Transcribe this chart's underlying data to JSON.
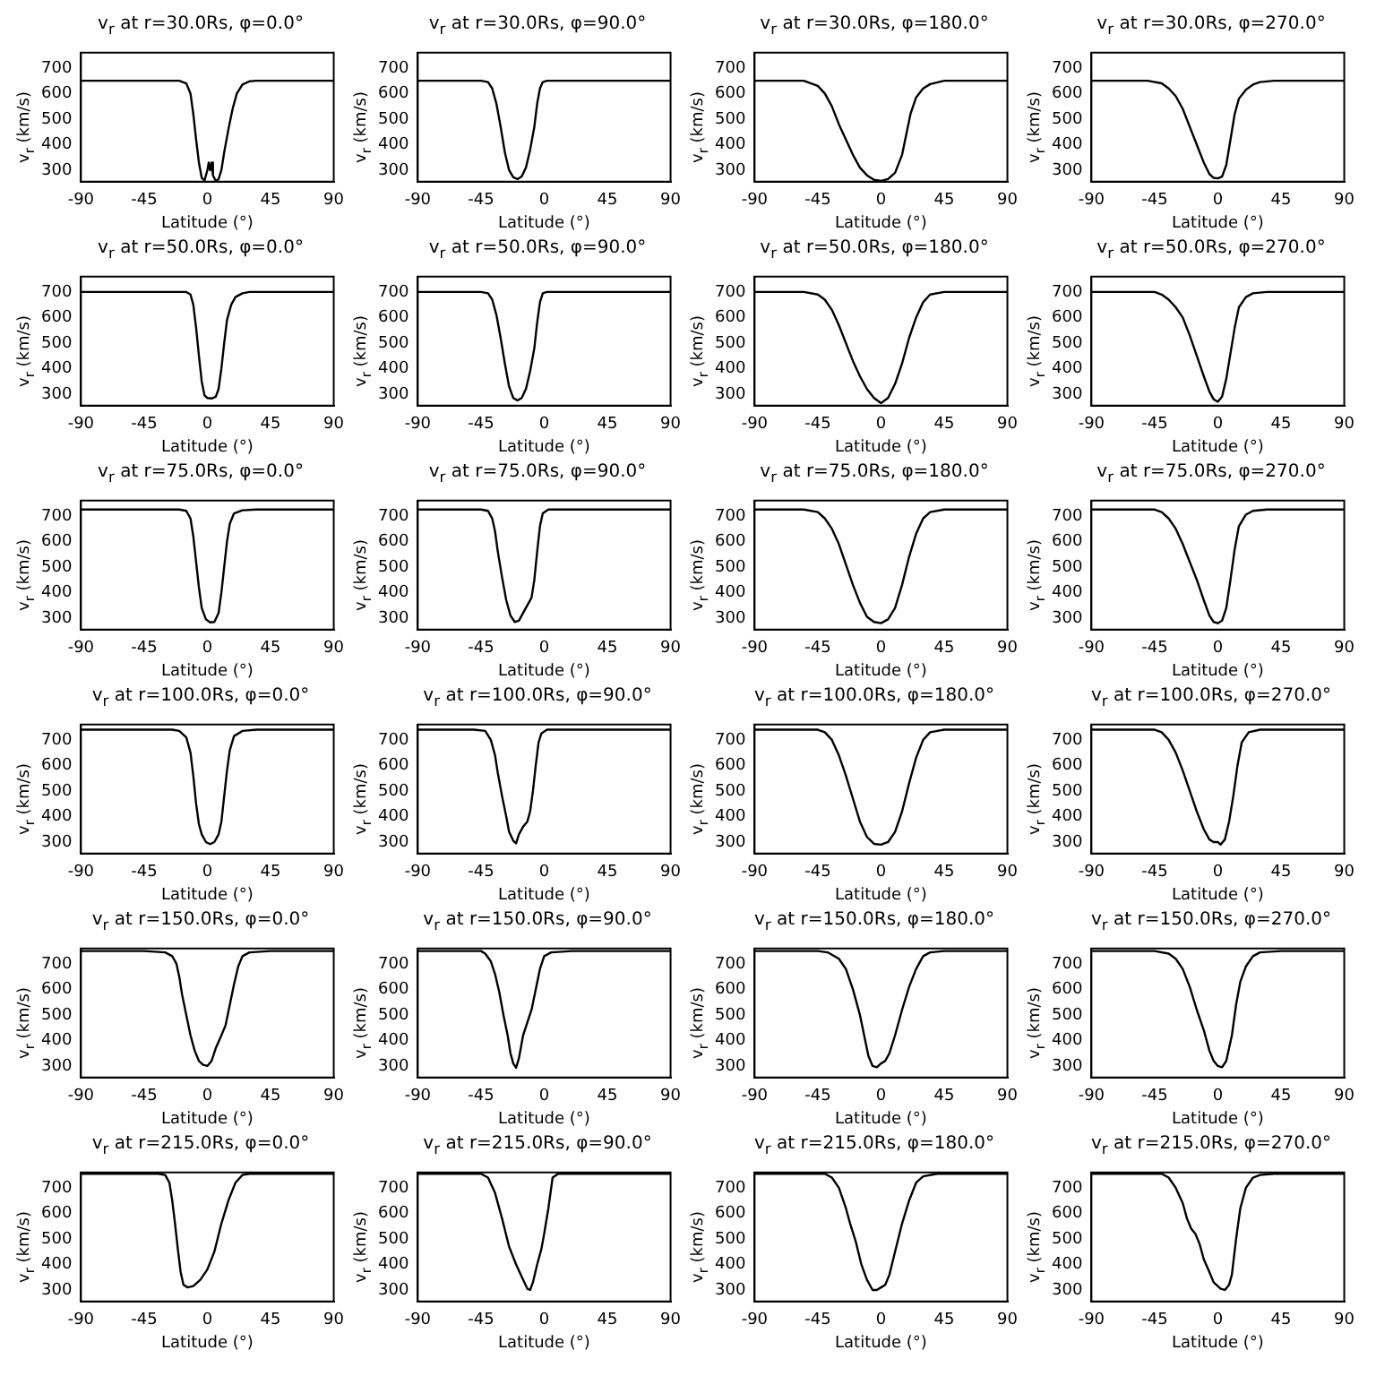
{
  "chart_data": [
    {
      "type": "line",
      "title": "v$_{r}$ at r=30.0Rs, φ=0.0°",
      "xlabel": "Latitude (°)",
      "ylabel": "v$_{r}$ (km/s)",
      "color": "#000000",
      "xlim": [
        -90,
        90
      ],
      "xticks": [
        -90,
        -45,
        0,
        45,
        90
      ],
      "ylim": [
        255,
        760
      ],
      "yticks": [
        300,
        400,
        500,
        600,
        700
      ],
      "x": [
        -90,
        -20,
        -15,
        -12,
        -10,
        -8,
        -6,
        -4,
        -2,
        0,
        1,
        2,
        3,
        4,
        6,
        8,
        10,
        12,
        15,
        18,
        21,
        25,
        30,
        35,
        90
      ],
      "values": [
        650,
        650,
        640,
        600,
        520,
        420,
        330,
        270,
        260,
        300,
        330,
        300,
        330,
        280,
        258,
        265,
        300,
        370,
        460,
        540,
        600,
        635,
        648,
        650,
        650
      ]
    },
    {
      "type": "line",
      "title": "v$_{r}$ at r=30.0Rs, φ=90.0°",
      "xlabel": "Latitude (°)",
      "ylabel": "v$_{r}$ (km/s)",
      "color": "#000000",
      "xlim": [
        -90,
        90
      ],
      "xticks": [
        -90,
        -45,
        0,
        45,
        90
      ],
      "ylim": [
        255,
        760
      ],
      "yticks": [
        300,
        400,
        500,
        600,
        700
      ],
      "x": [
        -90,
        -45,
        -40,
        -37,
        -34,
        -31,
        -28,
        -25,
        -22,
        -19,
        -16,
        -13,
        -10,
        -7,
        -5,
        -3,
        -1,
        2,
        90
      ],
      "values": [
        650,
        650,
        645,
        620,
        560,
        470,
        370,
        300,
        272,
        265,
        275,
        310,
        380,
        470,
        560,
        620,
        645,
        650,
        650
      ]
    },
    {
      "type": "line",
      "title": "v$_{r}$ at r=30.0Rs, φ=180.0°",
      "xlabel": "Latitude (°)",
      "ylabel": "v$_{r}$ (km/s)",
      "color": "#000000",
      "xlim": [
        -90,
        90
      ],
      "xticks": [
        -90,
        -45,
        0,
        45,
        90
      ],
      "ylim": [
        255,
        760
      ],
      "yticks": [
        300,
        400,
        500,
        600,
        700
      ],
      "x": [
        -90,
        -55,
        -45,
        -40,
        -35,
        -30,
        -25,
        -20,
        -15,
        -10,
        -5,
        0,
        5,
        10,
        15,
        18,
        21,
        25,
        30,
        35,
        45,
        90
      ],
      "values": [
        650,
        650,
        630,
        600,
        550,
        480,
        420,
        360,
        310,
        280,
        262,
        258,
        265,
        290,
        360,
        440,
        520,
        585,
        620,
        637,
        650,
        650
      ]
    },
    {
      "type": "line",
      "title": "v$_{r}$ at r=30.0Rs, φ=270.0°",
      "xlabel": "Latitude (°)",
      "ylabel": "v$_{r}$ (km/s)",
      "color": "#000000",
      "xlim": [
        -90,
        90
      ],
      "xticks": [
        -90,
        -45,
        0,
        45,
        90
      ],
      "ylim": [
        255,
        760
      ],
      "yticks": [
        300,
        400,
        500,
        600,
        700
      ],
      "x": [
        -90,
        -50,
        -40,
        -35,
        -30,
        -25,
        -20,
        -15,
        -10,
        -6,
        -3,
        0,
        3,
        6,
        9,
        12,
        15,
        20,
        25,
        30,
        40,
        90
      ],
      "values": [
        650,
        650,
        640,
        620,
        590,
        540,
        470,
        400,
        330,
        285,
        270,
        268,
        275,
        320,
        420,
        520,
        580,
        615,
        635,
        645,
        650,
        650
      ]
    },
    {
      "type": "line",
      "title": "v$_{r}$ at r=50.0Rs, φ=0.0°",
      "xlabel": "Latitude (°)",
      "ylabel": "v$_{r}$ (km/s)",
      "color": "#000000",
      "xlim": [
        -90,
        90
      ],
      "xticks": [
        -90,
        -45,
        0,
        45,
        90
      ],
      "ylim": [
        255,
        760
      ],
      "yticks": [
        300,
        400,
        500,
        600,
        700
      ],
      "x": [
        -90,
        -15,
        -12,
        -10,
        -8,
        -6,
        -4,
        -2,
        0,
        3,
        6,
        8,
        10,
        12,
        14,
        17,
        20,
        25,
        30,
        90
      ],
      "values": [
        700,
        700,
        690,
        650,
        560,
        450,
        350,
        295,
        285,
        283,
        290,
        320,
        400,
        500,
        590,
        650,
        680,
        695,
        700,
        700
      ]
    },
    {
      "type": "line",
      "title": "v$_{r}$ at r=50.0Rs, φ=90.0°",
      "xlabel": "Latitude (°)",
      "ylabel": "v$_{r}$ (km/s)",
      "color": "#000000",
      "xlim": [
        -90,
        90
      ],
      "xticks": [
        -90,
        -45,
        0,
        45,
        90
      ],
      "ylim": [
        255,
        760
      ],
      "yticks": [
        300,
        400,
        500,
        600,
        700
      ],
      "x": [
        -90,
        -45,
        -40,
        -37,
        -34,
        -31,
        -28,
        -25,
        -22,
        -19,
        -16,
        -13,
        -10,
        -7,
        -5,
        -3,
        -1,
        2,
        90
      ],
      "values": [
        700,
        700,
        695,
        670,
        610,
        520,
        420,
        330,
        285,
        275,
        285,
        320,
        390,
        480,
        580,
        660,
        695,
        700,
        700
      ]
    },
    {
      "type": "line",
      "title": "v$_{r}$ at r=50.0Rs, φ=180.0°",
      "xlabel": "Latitude (°)",
      "ylabel": "v$_{r}$ (km/s)",
      "color": "#000000",
      "xlim": [
        -90,
        90
      ],
      "xticks": [
        -90,
        -45,
        0,
        45,
        90
      ],
      "ylim": [
        255,
        760
      ],
      "yticks": [
        300,
        400,
        500,
        600,
        700
      ],
      "x": [
        -90,
        -55,
        -45,
        -40,
        -35,
        -30,
        -25,
        -20,
        -15,
        -10,
        -5,
        0,
        5,
        10,
        15,
        20,
        25,
        30,
        35,
        45,
        90
      ],
      "values": [
        700,
        700,
        690,
        670,
        630,
        570,
        500,
        430,
        370,
        320,
        285,
        265,
        285,
        340,
        420,
        520,
        600,
        660,
        690,
        700,
        700
      ]
    },
    {
      "type": "line",
      "title": "v$_{r}$ at r=50.0Rs, φ=270.0°",
      "xlabel": "Latitude (°)",
      "ylabel": "v$_{r}$ (km/s)",
      "color": "#000000",
      "xlim": [
        -90,
        90
      ],
      "xticks": [
        -90,
        -45,
        0,
        45,
        90
      ],
      "ylim": [
        255,
        760
      ],
      "yticks": [
        300,
        400,
        500,
        600,
        700
      ],
      "x": [
        -90,
        -45,
        -40,
        -35,
        -30,
        -25,
        -20,
        -15,
        -10,
        -6,
        -3,
        0,
        3,
        6,
        9,
        12,
        15,
        20,
        25,
        35,
        90
      ],
      "values": [
        700,
        700,
        690,
        670,
        640,
        600,
        530,
        450,
        370,
        310,
        280,
        270,
        290,
        360,
        460,
        560,
        640,
        680,
        695,
        700,
        700
      ]
    },
    {
      "type": "line",
      "title": "v$_{r}$ at r=75.0Rs, φ=0.0°",
      "xlabel": "Latitude (°)",
      "ylabel": "v$_{r}$ (km/s)",
      "color": "#000000",
      "xlim": [
        -90,
        90
      ],
      "xticks": [
        -90,
        -45,
        0,
        45,
        90
      ],
      "ylim": [
        255,
        760
      ],
      "yticks": [
        300,
        400,
        500,
        600,
        700
      ],
      "x": [
        -90,
        -20,
        -15,
        -12,
        -10,
        -8,
        -6,
        -4,
        -1,
        2,
        5,
        8,
        10,
        12,
        14,
        16,
        19,
        25,
        35,
        90
      ],
      "values": [
        725,
        725,
        720,
        690,
        620,
        520,
        420,
        340,
        295,
        283,
        285,
        320,
        400,
        500,
        600,
        670,
        710,
        722,
        725,
        725
      ]
    },
    {
      "type": "line",
      "title": "v$_{r}$ at r=75.0Rs, φ=90.0°",
      "xlabel": "Latitude (°)",
      "ylabel": "v$_{r}$ (km/s)",
      "color": "#000000",
      "xlim": [
        -90,
        90
      ],
      "xticks": [
        -90,
        -45,
        0,
        45,
        90
      ],
      "ylim": [
        255,
        760
      ],
      "yticks": [
        300,
        400,
        500,
        600,
        700
      ],
      "x": [
        -90,
        -45,
        -40,
        -37,
        -35,
        -33,
        -30,
        -27,
        -24,
        -21,
        -18,
        -14,
        -11,
        -9,
        -7,
        -5,
        -3,
        -1,
        3,
        90
      ],
      "values": [
        725,
        725,
        720,
        690,
        640,
        560,
        460,
        370,
        310,
        285,
        290,
        330,
        360,
        380,
        450,
        560,
        660,
        710,
        725,
        725
      ]
    },
    {
      "type": "line",
      "title": "v$_{r}$ at r=75.0Rs, φ=180.0°",
      "xlabel": "Latitude (°)",
      "ylabel": "v$_{r}$ (km/s)",
      "color": "#000000",
      "xlim": [
        -90,
        90
      ],
      "xticks": [
        -90,
        -45,
        0,
        45,
        90
      ],
      "ylim": [
        255,
        760
      ],
      "yticks": [
        300,
        400,
        500,
        600,
        700
      ],
      "x": [
        -90,
        -55,
        -45,
        -40,
        -35,
        -30,
        -25,
        -20,
        -15,
        -10,
        -5,
        0,
        5,
        10,
        15,
        20,
        25,
        30,
        35,
        45,
        90
      ],
      "values": [
        725,
        725,
        715,
        690,
        650,
        590,
        510,
        430,
        360,
        305,
        285,
        280,
        295,
        340,
        430,
        540,
        630,
        690,
        715,
        725,
        725
      ]
    },
    {
      "type": "line",
      "title": "v$_{r}$ at r=75.0Rs, φ=270.0°",
      "xlabel": "Latitude (°)",
      "ylabel": "v$_{r}$ (km/s)",
      "color": "#000000",
      "xlim": [
        -90,
        90
      ],
      "xticks": [
        -90,
        -45,
        0,
        45,
        90
      ],
      "ylim": [
        255,
        760
      ],
      "yticks": [
        300,
        400,
        500,
        600,
        700
      ],
      "x": [
        -90,
        -45,
        -40,
        -35,
        -30,
        -25,
        -20,
        -15,
        -10,
        -6,
        -3,
        0,
        3,
        6,
        9,
        12,
        15,
        20,
        25,
        35,
        90
      ],
      "values": [
        725,
        725,
        715,
        690,
        650,
        590,
        520,
        450,
        370,
        310,
        285,
        280,
        290,
        340,
        450,
        570,
        660,
        705,
        720,
        725,
        725
      ]
    },
    {
      "type": "line",
      "title": "v$_{r}$ at r=100.0Rs, φ=0.0°",
      "xlabel": "Latitude (°)",
      "ylabel": "v$_{r}$ (km/s)",
      "color": "#000000",
      "xlim": [
        -90,
        90
      ],
      "xticks": [
        -90,
        -45,
        0,
        45,
        90
      ],
      "ylim": [
        255,
        760
      ],
      "yticks": [
        300,
        400,
        500,
        600,
        700
      ],
      "x": [
        -90,
        -25,
        -20,
        -15,
        -12,
        -10,
        -8,
        -6,
        -4,
        -1,
        2,
        5,
        8,
        10,
        12,
        14,
        16,
        19,
        25,
        35,
        90
      ],
      "values": [
        740,
        740,
        735,
        710,
        650,
        560,
        450,
        370,
        330,
        300,
        292,
        300,
        330,
        380,
        480,
        580,
        660,
        715,
        735,
        740,
        740
      ]
    },
    {
      "type": "line",
      "title": "v$_{r}$ at r=100.0Rs, φ=90.0°",
      "xlabel": "Latitude (°)",
      "ylabel": "v$_{r}$ (km/s)",
      "color": "#000000",
      "xlim": [
        -90,
        90
      ],
      "xticks": [
        -90,
        -45,
        0,
        45,
        90
      ],
      "ylim": [
        255,
        760
      ],
      "yticks": [
        300,
        400,
        500,
        600,
        700
      ],
      "x": [
        -90,
        -50,
        -42,
        -38,
        -35,
        -33,
        -30,
        -27,
        -25,
        -22,
        -20,
        -18,
        -15,
        -12,
        -10,
        -8,
        -6,
        -4,
        -2,
        2,
        90
      ],
      "values": [
        740,
        740,
        735,
        700,
        640,
        570,
        480,
        400,
        340,
        305,
        295,
        330,
        360,
        380,
        420,
        500,
        600,
        690,
        725,
        740,
        740
      ]
    },
    {
      "type": "line",
      "title": "v$_{r}$ at r=100.0Rs, φ=180.0°",
      "xlabel": "Latitude (°)",
      "ylabel": "v$_{r}$ (km/s)",
      "color": "#000000",
      "xlim": [
        -90,
        90
      ],
      "xticks": [
        -90,
        -45,
        0,
        45,
        90
      ],
      "ylim": [
        255,
        760
      ],
      "yticks": [
        300,
        400,
        500,
        600,
        700
      ],
      "x": [
        -90,
        -45,
        -40,
        -35,
        -30,
        -25,
        -20,
        -15,
        -10,
        -5,
        0,
        5,
        10,
        15,
        20,
        25,
        30,
        35,
        45,
        90
      ],
      "values": [
        740,
        740,
        730,
        700,
        640,
        560,
        470,
        380,
        320,
        293,
        290,
        300,
        340,
        420,
        530,
        630,
        700,
        730,
        740,
        740
      ]
    },
    {
      "type": "line",
      "title": "v$_{r}$ at r=100.0Rs, φ=270.0°",
      "xlabel": "Latitude (°)",
      "ylabel": "v$_{r}$ (km/s)",
      "color": "#000000",
      "xlim": [
        -90,
        90
      ],
      "xticks": [
        -90,
        -45,
        0,
        45,
        90
      ],
      "ylim": [
        255,
        760
      ],
      "yticks": [
        300,
        400,
        500,
        600,
        700
      ],
      "x": [
        -90,
        -45,
        -40,
        -35,
        -30,
        -25,
        -20,
        -15,
        -10,
        -6,
        -3,
        0,
        2,
        5,
        8,
        11,
        14,
        17,
        22,
        30,
        90
      ],
      "values": [
        740,
        740,
        730,
        700,
        650,
        580,
        500,
        420,
        350,
        310,
        300,
        300,
        290,
        310,
        380,
        480,
        600,
        690,
        730,
        740,
        740
      ]
    },
    {
      "type": "line",
      "title": "v$_{r}$ at r=150.0Rs, φ=0.0°",
      "xlabel": "Latitude (°)",
      "ylabel": "v$_{r}$ (km/s)",
      "color": "#000000",
      "xlim": [
        -90,
        90
      ],
      "xticks": [
        -90,
        -45,
        0,
        45,
        90
      ],
      "ylim": [
        255,
        760
      ],
      "yticks": [
        300,
        400,
        500,
        600,
        700
      ],
      "x": [
        -90,
        -45,
        -30,
        -25,
        -22,
        -20,
        -18,
        -15,
        -12,
        -9,
        -6,
        -3,
        0,
        3,
        6,
        10,
        13,
        16,
        19,
        22,
        25,
        30,
        45,
        90
      ],
      "values": [
        750,
        750,
        745,
        730,
        700,
        650,
        580,
        500,
        420,
        360,
        320,
        305,
        300,
        320,
        370,
        420,
        460,
        540,
        620,
        690,
        730,
        745,
        750,
        750
      ]
    },
    {
      "type": "line",
      "title": "v$_{r}$ at r=150.0Rs, φ=90.0°",
      "xlabel": "Latitude (°)",
      "ylabel": "v$_{r}$ (km/s)",
      "color": "#000000",
      "xlim": [
        -90,
        90
      ],
      "xticks": [
        -90,
        -45,
        0,
        45,
        90
      ],
      "ylim": [
        255,
        760
      ],
      "yticks": [
        300,
        400,
        500,
        600,
        700
      ],
      "x": [
        -90,
        -45,
        -42,
        -38,
        -35,
        -32,
        -29,
        -26,
        -24,
        -22,
        -20,
        -18,
        -15,
        -12,
        -9,
        -6,
        -3,
        0,
        5,
        20,
        90
      ],
      "values": [
        750,
        750,
        740,
        710,
        660,
        590,
        500,
        420,
        350,
        310,
        293,
        330,
        420,
        470,
        520,
        600,
        680,
        730,
        745,
        750,
        750
      ]
    },
    {
      "type": "line",
      "title": "v$_{r}$ at r=150.0Rs, φ=180.0°",
      "xlabel": "Latitude (°)",
      "ylabel": "v$_{r}$ (km/s)",
      "color": "#000000",
      "xlim": [
        -90,
        90
      ],
      "xticks": [
        -90,
        -45,
        0,
        45,
        90
      ],
      "ylim": [
        255,
        760
      ],
      "yticks": [
        300,
        400,
        500,
        600,
        700
      ],
      "x": [
        -90,
        -45,
        -38,
        -30,
        -25,
        -20,
        -15,
        -12,
        -9,
        -6,
        -3,
        0,
        3,
        6,
        10,
        15,
        20,
        25,
        30,
        35,
        45,
        90
      ],
      "values": [
        750,
        750,
        745,
        720,
        680,
        600,
        500,
        420,
        340,
        300,
        295,
        310,
        320,
        350,
        420,
        520,
        610,
        680,
        730,
        745,
        750,
        750
      ]
    },
    {
      "type": "line",
      "title": "v$_{r}$ at r=150.0Rs, φ=270.0°",
      "xlabel": "Latitude (°)",
      "ylabel": "v$_{r}$ (km/s)",
      "color": "#000000",
      "xlim": [
        -90,
        90
      ],
      "xticks": [
        -90,
        -45,
        0,
        45,
        90
      ],
      "ylim": [
        255,
        760
      ],
      "yticks": [
        300,
        400,
        500,
        600,
        700
      ],
      "x": [
        -90,
        -45,
        -35,
        -30,
        -25,
        -20,
        -15,
        -10,
        -6,
        -3,
        0,
        3,
        6,
        10,
        13,
        16,
        20,
        25,
        30,
        45,
        90
      ],
      "values": [
        750,
        750,
        740,
        720,
        680,
        610,
        520,
        440,
        360,
        320,
        300,
        295,
        320,
        420,
        540,
        630,
        690,
        730,
        745,
        750,
        750
      ]
    },
    {
      "type": "line",
      "title": "v$_{r}$ at r=215.0Rs, φ=0.0°",
      "xlabel": "Latitude (°)",
      "ylabel": "v$_{r}$ (km/s)",
      "color": "#000000",
      "xlim": [
        -90,
        90
      ],
      "xticks": [
        -90,
        -45,
        0,
        45,
        90
      ],
      "ylim": [
        255,
        760
      ],
      "yticks": [
        300,
        400,
        500,
        600,
        700
      ],
      "x": [
        -90,
        -35,
        -30,
        -27,
        -25,
        -23,
        -21,
        -19,
        -17,
        -14,
        -10,
        -5,
        0,
        5,
        10,
        15,
        20,
        25,
        30,
        90
      ],
      "values": [
        755,
        755,
        750,
        720,
        650,
        560,
        460,
        370,
        320,
        310,
        315,
        340,
        380,
        450,
        560,
        650,
        720,
        750,
        755,
        755
      ]
    },
    {
      "type": "line",
      "title": "v$_{r}$ at r=215.0Rs, φ=90.0°",
      "xlabel": "Latitude (°)",
      "ylabel": "v$_{r}$ (km/s)",
      "color": "#000000",
      "xlim": [
        -90,
        90
      ],
      "xticks": [
        -90,
        -45,
        0,
        45,
        90
      ],
      "ylim": [
        255,
        760
      ],
      "yticks": [
        300,
        400,
        500,
        600,
        700
      ],
      "x": [
        -90,
        -45,
        -40,
        -35,
        -30,
        -25,
        -20,
        -15,
        -12,
        -10,
        -8,
        -5,
        -2,
        0,
        3,
        6,
        10,
        90
      ],
      "values": [
        755,
        755,
        740,
        680,
        580,
        470,
        400,
        340,
        305,
        300,
        330,
        400,
        460,
        520,
        620,
        740,
        755,
        755
      ]
    },
    {
      "type": "line",
      "title": "v$_{r}$ at r=215.0Rs, φ=180.0°",
      "xlabel": "Latitude (°)",
      "ylabel": "v$_{r}$ (km/s)",
      "color": "#000000",
      "xlim": [
        -90,
        90
      ],
      "xticks": [
        -90,
        -45,
        0,
        45,
        90
      ],
      "ylim": [
        255,
        760
      ],
      "yticks": [
        300,
        400,
        500,
        600,
        700
      ],
      "x": [
        -90,
        -40,
        -35,
        -30,
        -25,
        -22,
        -18,
        -14,
        -10,
        -6,
        -3,
        0,
        3,
        6,
        10,
        15,
        20,
        25,
        30,
        40,
        90
      ],
      "values": [
        755,
        755,
        740,
        700,
        620,
        560,
        490,
        400,
        340,
        300,
        300,
        310,
        320,
        360,
        450,
        560,
        650,
        720,
        745,
        755,
        755
      ]
    },
    {
      "type": "line",
      "title": "v$_{r}$ at r=215.0Rs, φ=270.0°",
      "xlabel": "Latitude (°)",
      "ylabel": "v$_{r}$ (km/s)",
      "color": "#000000",
      "xlim": [
        -90,
        90
      ],
      "xticks": [
        -90,
        -45,
        0,
        45,
        90
      ],
      "ylim": [
        255,
        760
      ],
      "yticks": [
        300,
        400,
        500,
        600,
        700
      ],
      "x": [
        -90,
        -40,
        -35,
        -30,
        -25,
        -22,
        -19,
        -16,
        -13,
        -10,
        -6,
        -3,
        2,
        5,
        8,
        10,
        13,
        16,
        20,
        25,
        30,
        40,
        90
      ],
      "values": [
        755,
        755,
        740,
        700,
        640,
        580,
        540,
        520,
        480,
        420,
        370,
        330,
        305,
        300,
        320,
        360,
        500,
        620,
        700,
        740,
        750,
        755,
        755
      ]
    }
  ]
}
